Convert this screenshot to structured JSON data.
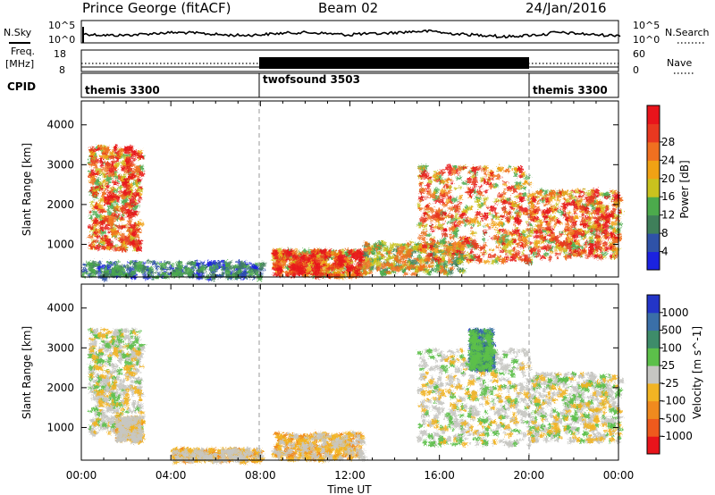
{
  "header": {
    "station": "Prince George (fitACF)",
    "beam": "Beam 02",
    "date": "24/Jan/2016"
  },
  "top_panels": {
    "noise_left_label": "N.Sky",
    "noise_right_label": "N.Search",
    "noise_left_ticks": [
      "10^5",
      "10^0"
    ],
    "noise_right_ticks": [
      "10^5",
      "10^0"
    ],
    "freq_label_1": "Freq.",
    "freq_label_2": "[MHz]",
    "freq_ticks": [
      "18",
      "8"
    ],
    "nave_label": "Nave",
    "nave_ticks": [
      "60",
      "0"
    ],
    "cpid_label": "CPID",
    "cpid_segments": [
      {
        "name": "themis 3300",
        "start_hr": 0,
        "end_hr": 8
      },
      {
        "name": "twofsound 3503",
        "start_hr": 8,
        "end_hr": 20
      },
      {
        "name": "themis 3300",
        "start_hr": 20,
        "end_hr": 24
      }
    ]
  },
  "chart_data": [
    {
      "type": "heatmap",
      "title": "",
      "ylabel": "Slant Range [km]",
      "xlabel": "",
      "xlim_hours": [
        0,
        24
      ],
      "ylim_km": [
        180,
        4600
      ],
      "y_ticks": [
        "1000",
        "2000",
        "3000",
        "4000"
      ],
      "colorbar": {
        "label": "Power [dB]",
        "ticks": [
          "4",
          "8",
          "12",
          "16",
          "20",
          "24",
          "28"
        ],
        "colors": [
          "#1b22e0",
          "#2f52a8",
          "#3f7f5a",
          "#4caa4c",
          "#c9c21e",
          "#f1a214",
          "#f07020",
          "#e83820",
          "#e8141b"
        ]
      },
      "echo_regions": [
        {
          "hours": [
            0.3,
            2.6
          ],
          "range_km": [
            900,
            3500
          ],
          "level": "high"
        },
        {
          "hours": [
            0.0,
            8.0
          ],
          "range_km": [
            200,
            600
          ],
          "level": "low"
        },
        {
          "hours": [
            8.5,
            12.5
          ],
          "range_km": [
            250,
            900
          ],
          "level": "high"
        },
        {
          "hours": [
            12.5,
            17.0
          ],
          "range_km": [
            300,
            1100
          ],
          "level": "medium"
        },
        {
          "hours": [
            15.0,
            20.0
          ],
          "range_km": [
            600,
            3000
          ],
          "level": "high"
        },
        {
          "hours": [
            20.0,
            24.0
          ],
          "range_km": [
            700,
            2400
          ],
          "level": "high"
        }
      ]
    },
    {
      "type": "heatmap",
      "title": "",
      "ylabel": "Slant Range [km]",
      "xlabel": "Time UT",
      "xlim_hours": [
        0,
        24
      ],
      "ylim_km": [
        180,
        4600
      ],
      "y_ticks": [
        "1000",
        "2000",
        "3000",
        "4000"
      ],
      "x_ticks": [
        "00:00",
        "04:00",
        "08:00",
        "12:00",
        "16:00",
        "20:00",
        "00:00"
      ],
      "colorbar": {
        "label": "Velocity [m s^-1]",
        "ticks": [
          "1000",
          "500",
          "100",
          "25",
          "-25",
          "-100",
          "-500",
          "-1000"
        ],
        "colors": [
          "#2335c8",
          "#3a6fa8",
          "#3e8c6a",
          "#5cc04a",
          "#c6c6c2",
          "#f2b423",
          "#f08a1e",
          "#ee5a1d",
          "#e8141b"
        ]
      },
      "echo_regions": [
        {
          "hours": [
            0.3,
            2.6
          ],
          "range_km": [
            900,
            3500
          ],
          "velocity": "near zero"
        },
        {
          "hours": [
            1.5,
            2.6
          ],
          "range_km": [
            700,
            1300
          ],
          "velocity": "negative"
        },
        {
          "hours": [
            4.0,
            8.0
          ],
          "range_km": [
            200,
            500
          ],
          "velocity": "negative"
        },
        {
          "hours": [
            8.5,
            12.5
          ],
          "range_km": [
            250,
            900
          ],
          "velocity": "negative"
        },
        {
          "hours": [
            15.0,
            20.0
          ],
          "range_km": [
            600,
            3000
          ],
          "velocity": "near zero"
        },
        {
          "hours": [
            17.3,
            18.3
          ],
          "range_km": [
            2500,
            3500
          ],
          "velocity": "positive"
        },
        {
          "hours": [
            20.0,
            24.0
          ],
          "range_km": [
            700,
            2400
          ],
          "velocity": "near zero"
        }
      ]
    }
  ]
}
